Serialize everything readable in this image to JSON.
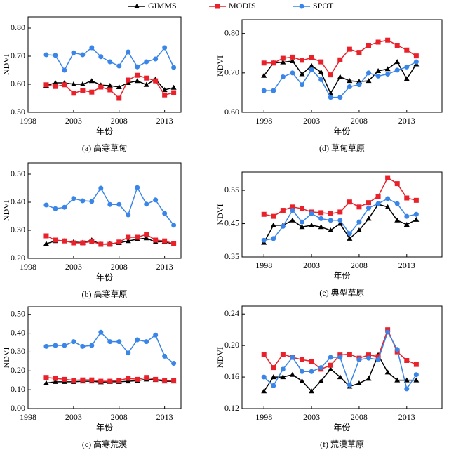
{
  "chart_data": [
    {
      "type": "line",
      "title": "(a) 高寒草甸",
      "x_label": "年份",
      "y_label": "NDVI",
      "x": [
        2000,
        2001,
        2002,
        2003,
        2004,
        2005,
        2006,
        2007,
        2008,
        2009,
        2010,
        2011,
        2012,
        2013,
        2014
      ],
      "series": [
        {
          "name": "GIMMS",
          "color": "#000000",
          "marker": "triangle",
          "values": [
            0.595,
            0.605,
            0.605,
            0.6,
            0.6,
            0.612,
            0.597,
            0.595,
            0.59,
            0.605,
            0.612,
            0.598,
            0.618,
            0.58,
            0.588
          ]
        },
        {
          "name": "MODIS",
          "color": "#e8212a",
          "marker": "square",
          "values": [
            0.598,
            0.592,
            0.598,
            0.568,
            0.578,
            0.572,
            0.59,
            0.58,
            0.55,
            0.615,
            0.632,
            0.622,
            0.612,
            0.562,
            0.57
          ]
        },
        {
          "name": "SPOT",
          "color": "#3a86e8",
          "marker": "circle",
          "values": [
            0.705,
            0.703,
            0.65,
            0.712,
            0.705,
            0.73,
            0.698,
            0.68,
            0.665,
            0.715,
            0.662,
            0.68,
            0.69,
            0.73,
            0.66
          ]
        }
      ],
      "xlim": [
        1998,
        2014.8
      ],
      "ylim": [
        0.5,
        0.84
      ],
      "xticks": [
        1998,
        2003,
        2008,
        2013
      ],
      "yticks": [
        {
          "value": 0.5,
          "label": "0.50"
        },
        {
          "value": 0.6,
          "label": "0.60"
        },
        {
          "value": 0.7,
          "label": "0.70"
        },
        {
          "value": 0.8,
          "label": "0.80"
        }
      ]
    },
    {
      "type": "line",
      "title": "(d) 草甸草原",
      "x_label": "年份",
      "y_label": "NDVI",
      "x": [
        1998,
        1999,
        2000,
        2001,
        2002,
        2003,
        2004,
        2005,
        2006,
        2007,
        2008,
        2009,
        2010,
        2011,
        2012,
        2013,
        2014
      ],
      "series": [
        {
          "values": [
            0.693,
            0.725,
            0.727,
            0.73,
            0.697,
            0.718,
            0.702,
            0.648,
            0.69,
            0.68,
            0.678,
            0.68,
            0.705,
            0.71,
            0.728,
            0.685,
            0.722
          ]
        },
        {
          "values": [
            0.725,
            0.725,
            0.737,
            0.74,
            0.732,
            0.738,
            0.728,
            0.695,
            0.733,
            0.76,
            0.752,
            0.77,
            0.778,
            0.783,
            0.77,
            0.758,
            0.743
          ]
        },
        {
          "values": [
            0.655,
            0.655,
            0.69,
            0.7,
            0.67,
            0.708,
            0.683,
            0.638,
            0.638,
            0.665,
            0.67,
            0.7,
            0.692,
            0.697,
            0.707,
            0.715,
            0.728
          ]
        }
      ],
      "xlim": [
        1995.7,
        2016.7
      ],
      "ylim": [
        0.6,
        0.835
      ],
      "xticks": [
        1998,
        2003,
        2008,
        2013
      ],
      "yticks": [
        {
          "value": 0.6,
          "label": "0.60"
        },
        {
          "value": 0.7,
          "label": "0.70"
        },
        {
          "value": 0.8,
          "label": "0.80"
        }
      ]
    },
    {
      "type": "line",
      "title": "(b) 高寒草原",
      "x_label": "年份",
      "y_label": "NDVI",
      "x": [
        2000,
        2001,
        2002,
        2003,
        2004,
        2005,
        2006,
        2007,
        2008,
        2009,
        2010,
        2011,
        2012,
        2013,
        2014
      ],
      "series": [
        {
          "values": [
            0.252,
            0.262,
            0.262,
            0.258,
            0.256,
            0.265,
            0.25,
            0.252,
            0.255,
            0.262,
            0.268,
            0.272,
            0.258,
            0.26,
            0.25
          ]
        },
        {
          "values": [
            0.28,
            0.265,
            0.262,
            0.255,
            0.255,
            0.26,
            0.25,
            0.25,
            0.258,
            0.275,
            0.275,
            0.285,
            0.265,
            0.262,
            0.252
          ]
        },
        {
          "values": [
            0.39,
            0.377,
            0.382,
            0.413,
            0.405,
            0.403,
            0.45,
            0.392,
            0.392,
            0.355,
            0.452,
            0.393,
            0.408,
            0.36,
            0.318
          ]
        }
      ],
      "xlim": [
        1998,
        2014.8
      ],
      "ylim": [
        0.2,
        0.54
      ],
      "xticks": [
        1998,
        2003,
        2008,
        2013
      ],
      "yticks": [
        {
          "value": 0.2,
          "label": "0.20"
        },
        {
          "value": 0.3,
          "label": "0.30"
        },
        {
          "value": 0.4,
          "label": "0.40"
        },
        {
          "value": 0.5,
          "label": "0.50"
        }
      ]
    },
    {
      "type": "line",
      "title": "(e) 典型草原",
      "x_label": "年份",
      "y_label": "NDVI",
      "x": [
        1998,
        1999,
        2000,
        2001,
        2002,
        2003,
        2004,
        2005,
        2006,
        2007,
        2008,
        2009,
        2010,
        2011,
        2012,
        2013,
        2014
      ],
      "series": [
        {
          "values": [
            0.393,
            0.445,
            0.445,
            0.46,
            0.44,
            0.445,
            0.44,
            0.43,
            0.45,
            0.405,
            0.43,
            0.465,
            0.508,
            0.5,
            0.46,
            0.447,
            0.462
          ]
        },
        {
          "values": [
            0.478,
            0.472,
            0.49,
            0.5,
            0.495,
            0.485,
            0.483,
            0.48,
            0.485,
            0.515,
            0.5,
            0.513,
            0.532,
            0.588,
            0.57,
            0.527,
            0.52
          ]
        },
        {
          "values": [
            0.4,
            0.405,
            0.442,
            0.49,
            0.455,
            0.48,
            0.465,
            0.46,
            0.46,
            0.42,
            0.455,
            0.497,
            0.51,
            0.525,
            0.51,
            0.472,
            0.478
          ]
        }
      ],
      "xlim": [
        1995.7,
        2016.7
      ],
      "ylim": [
        0.35,
        0.605
      ],
      "xticks": [
        1998,
        2003,
        2008,
        2013
      ],
      "yticks": [
        {
          "value": 0.35,
          "label": "0.35"
        },
        {
          "value": 0.45,
          "label": "0.45"
        },
        {
          "value": 0.55,
          "label": "0.55"
        }
      ]
    },
    {
      "type": "line",
      "title": "(c) 高寒荒漠",
      "x_label": "年份",
      "y_label": "NDVI",
      "x": [
        2000,
        2001,
        2002,
        2003,
        2004,
        2005,
        2006,
        2007,
        2008,
        2009,
        2010,
        2011,
        2012,
        2013,
        2014
      ],
      "series": [
        {
          "values": [
            0.135,
            0.142,
            0.142,
            0.142,
            0.145,
            0.145,
            0.14,
            0.142,
            0.142,
            0.145,
            0.148,
            0.155,
            0.152,
            0.145,
            0.145
          ]
        },
        {
          "values": [
            0.165,
            0.16,
            0.155,
            0.15,
            0.152,
            0.152,
            0.145,
            0.145,
            0.15,
            0.16,
            0.155,
            0.165,
            0.155,
            0.15,
            0.148
          ]
        },
        {
          "values": [
            0.33,
            0.335,
            0.335,
            0.355,
            0.33,
            0.335,
            0.405,
            0.355,
            0.355,
            0.295,
            0.365,
            0.355,
            0.39,
            0.278,
            0.24
          ]
        }
      ],
      "xlim": [
        1998,
        2014.8
      ],
      "ylim": [
        0,
        0.54
      ],
      "xticks": [
        1998,
        2003,
        2008,
        2013
      ],
      "yticks": [
        {
          "value": 0,
          "label": "0.00"
        },
        {
          "value": 0.1,
          "label": "0.10"
        },
        {
          "value": 0.2,
          "label": "0.20"
        },
        {
          "value": 0.3,
          "label": "0.30"
        },
        {
          "value": 0.4,
          "label": "0.40"
        },
        {
          "value": 0.5,
          "label": "0.50"
        }
      ]
    },
    {
      "type": "line",
      "title": "(f) 荒漠草原",
      "x_label": "年份",
      "y_label": "NDVI",
      "x": [
        1998,
        1999,
        2000,
        2001,
        2002,
        2003,
        2004,
        2005,
        2006,
        2007,
        2008,
        2009,
        2010,
        2011,
        2012,
        2013,
        2014
      ],
      "series": [
        {
          "values": [
            0.142,
            0.16,
            0.16,
            0.163,
            0.155,
            0.142,
            0.155,
            0.17,
            0.16,
            0.148,
            0.152,
            0.158,
            0.188,
            0.166,
            0.156,
            0.156,
            0.156
          ]
        },
        {
          "values": [
            0.189,
            0.172,
            0.189,
            0.185,
            0.182,
            0.18,
            0.17,
            0.175,
            0.188,
            0.189,
            0.184,
            0.188,
            0.186,
            0.22,
            0.192,
            0.181,
            0.176
          ]
        },
        {
          "values": [
            0.16,
            0.149,
            0.17,
            0.185,
            0.167,
            0.167,
            0.172,
            0.185,
            0.185,
            0.15,
            0.182,
            0.184,
            0.182,
            0.217,
            0.195,
            0.145,
            0.163
          ]
        }
      ],
      "xlim": [
        1995.7,
        2016.7
      ],
      "ylim": [
        0.12,
        0.25
      ],
      "xticks": [
        1998,
        2003,
        2008,
        2013
      ],
      "yticks": [
        0.12,
        0.16,
        {
          "value": 0.2,
          "label": "0.20"
        },
        0.24
      ]
    }
  ]
}
